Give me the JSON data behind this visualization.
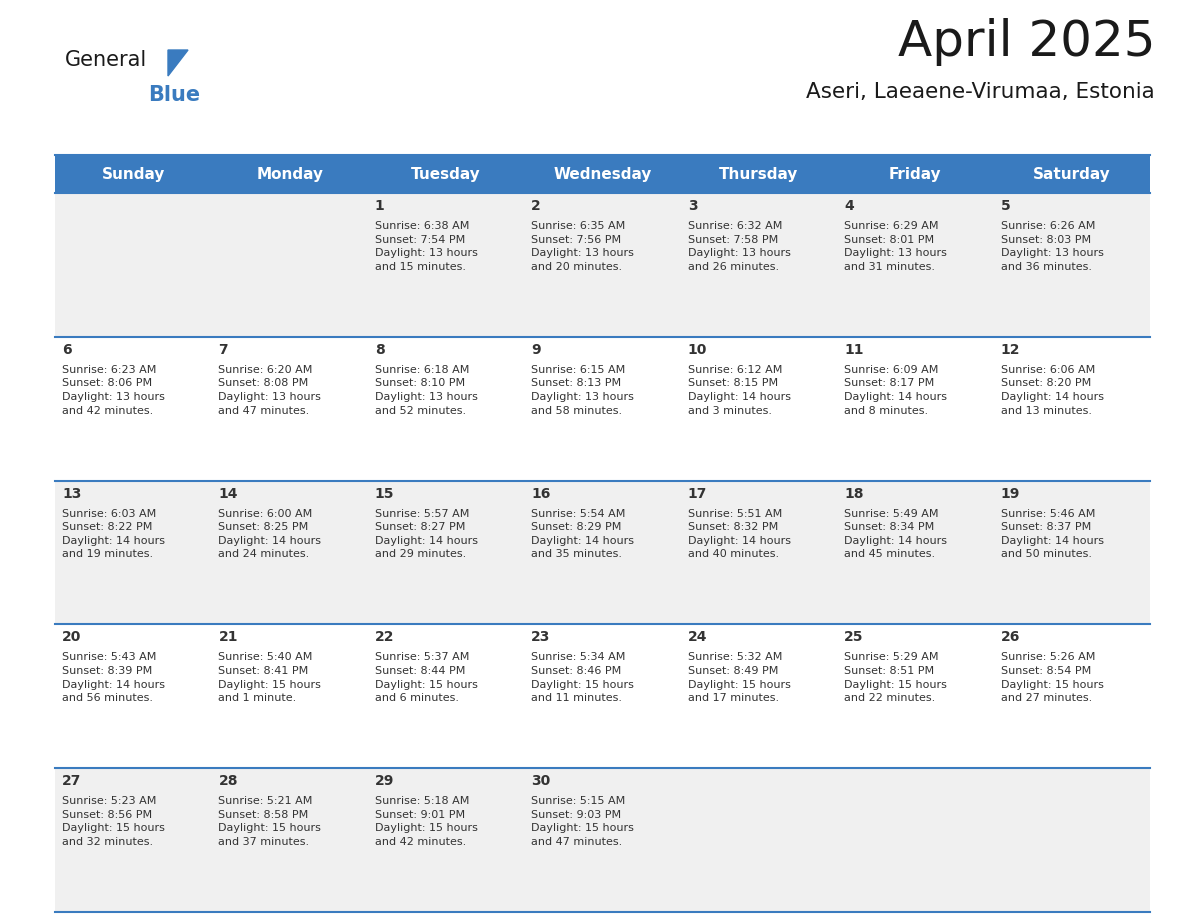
{
  "title": "April 2025",
  "subtitle": "Aseri, Laeaene-Virumaa, Estonia",
  "days_of_week": [
    "Sunday",
    "Monday",
    "Tuesday",
    "Wednesday",
    "Thursday",
    "Friday",
    "Saturday"
  ],
  "header_bg": "#3a7bbf",
  "header_text": "#ffffff",
  "row_bg_odd": "#f0f0f0",
  "row_bg_even": "#ffffff",
  "cell_text_color": "#333333",
  "border_color": "#3a7bbf",
  "title_fontsize": 36,
  "subtitle_fontsize": 16,
  "header_fontsize": 11,
  "day_num_fontsize": 10,
  "info_fontsize": 8,
  "calendar_data": [
    [
      {
        "day": "",
        "info": ""
      },
      {
        "day": "",
        "info": ""
      },
      {
        "day": "1",
        "info": "Sunrise: 6:38 AM\nSunset: 7:54 PM\nDaylight: 13 hours\nand 15 minutes."
      },
      {
        "day": "2",
        "info": "Sunrise: 6:35 AM\nSunset: 7:56 PM\nDaylight: 13 hours\nand 20 minutes."
      },
      {
        "day": "3",
        "info": "Sunrise: 6:32 AM\nSunset: 7:58 PM\nDaylight: 13 hours\nand 26 minutes."
      },
      {
        "day": "4",
        "info": "Sunrise: 6:29 AM\nSunset: 8:01 PM\nDaylight: 13 hours\nand 31 minutes."
      },
      {
        "day": "5",
        "info": "Sunrise: 6:26 AM\nSunset: 8:03 PM\nDaylight: 13 hours\nand 36 minutes."
      }
    ],
    [
      {
        "day": "6",
        "info": "Sunrise: 6:23 AM\nSunset: 8:06 PM\nDaylight: 13 hours\nand 42 minutes."
      },
      {
        "day": "7",
        "info": "Sunrise: 6:20 AM\nSunset: 8:08 PM\nDaylight: 13 hours\nand 47 minutes."
      },
      {
        "day": "8",
        "info": "Sunrise: 6:18 AM\nSunset: 8:10 PM\nDaylight: 13 hours\nand 52 minutes."
      },
      {
        "day": "9",
        "info": "Sunrise: 6:15 AM\nSunset: 8:13 PM\nDaylight: 13 hours\nand 58 minutes."
      },
      {
        "day": "10",
        "info": "Sunrise: 6:12 AM\nSunset: 8:15 PM\nDaylight: 14 hours\nand 3 minutes."
      },
      {
        "day": "11",
        "info": "Sunrise: 6:09 AM\nSunset: 8:17 PM\nDaylight: 14 hours\nand 8 minutes."
      },
      {
        "day": "12",
        "info": "Sunrise: 6:06 AM\nSunset: 8:20 PM\nDaylight: 14 hours\nand 13 minutes."
      }
    ],
    [
      {
        "day": "13",
        "info": "Sunrise: 6:03 AM\nSunset: 8:22 PM\nDaylight: 14 hours\nand 19 minutes."
      },
      {
        "day": "14",
        "info": "Sunrise: 6:00 AM\nSunset: 8:25 PM\nDaylight: 14 hours\nand 24 minutes."
      },
      {
        "day": "15",
        "info": "Sunrise: 5:57 AM\nSunset: 8:27 PM\nDaylight: 14 hours\nand 29 minutes."
      },
      {
        "day": "16",
        "info": "Sunrise: 5:54 AM\nSunset: 8:29 PM\nDaylight: 14 hours\nand 35 minutes."
      },
      {
        "day": "17",
        "info": "Sunrise: 5:51 AM\nSunset: 8:32 PM\nDaylight: 14 hours\nand 40 minutes."
      },
      {
        "day": "18",
        "info": "Sunrise: 5:49 AM\nSunset: 8:34 PM\nDaylight: 14 hours\nand 45 minutes."
      },
      {
        "day": "19",
        "info": "Sunrise: 5:46 AM\nSunset: 8:37 PM\nDaylight: 14 hours\nand 50 minutes."
      }
    ],
    [
      {
        "day": "20",
        "info": "Sunrise: 5:43 AM\nSunset: 8:39 PM\nDaylight: 14 hours\nand 56 minutes."
      },
      {
        "day": "21",
        "info": "Sunrise: 5:40 AM\nSunset: 8:41 PM\nDaylight: 15 hours\nand 1 minute."
      },
      {
        "day": "22",
        "info": "Sunrise: 5:37 AM\nSunset: 8:44 PM\nDaylight: 15 hours\nand 6 minutes."
      },
      {
        "day": "23",
        "info": "Sunrise: 5:34 AM\nSunset: 8:46 PM\nDaylight: 15 hours\nand 11 minutes."
      },
      {
        "day": "24",
        "info": "Sunrise: 5:32 AM\nSunset: 8:49 PM\nDaylight: 15 hours\nand 17 minutes."
      },
      {
        "day": "25",
        "info": "Sunrise: 5:29 AM\nSunset: 8:51 PM\nDaylight: 15 hours\nand 22 minutes."
      },
      {
        "day": "26",
        "info": "Sunrise: 5:26 AM\nSunset: 8:54 PM\nDaylight: 15 hours\nand 27 minutes."
      }
    ],
    [
      {
        "day": "27",
        "info": "Sunrise: 5:23 AM\nSunset: 8:56 PM\nDaylight: 15 hours\nand 32 minutes."
      },
      {
        "day": "28",
        "info": "Sunrise: 5:21 AM\nSunset: 8:58 PM\nDaylight: 15 hours\nand 37 minutes."
      },
      {
        "day": "29",
        "info": "Sunrise: 5:18 AM\nSunset: 9:01 PM\nDaylight: 15 hours\nand 42 minutes."
      },
      {
        "day": "30",
        "info": "Sunrise: 5:15 AM\nSunset: 9:03 PM\nDaylight: 15 hours\nand 47 minutes."
      },
      {
        "day": "",
        "info": ""
      },
      {
        "day": "",
        "info": ""
      },
      {
        "day": "",
        "info": ""
      }
    ]
  ]
}
